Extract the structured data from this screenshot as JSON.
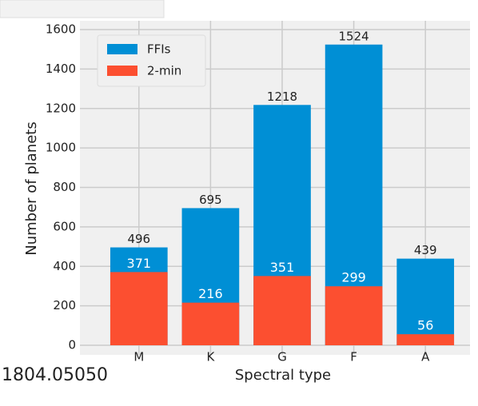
{
  "chart_data": {
    "type": "bar",
    "mode": "overlay",
    "categories": [
      "M",
      "K",
      "G",
      "F",
      "A"
    ],
    "series": [
      {
        "name": "FFIs",
        "color": "#008fd5",
        "values": [
          496,
          695,
          1218,
          1524,
          439
        ]
      },
      {
        "name": "2-min",
        "color": "#fc4f30",
        "values": [
          371,
          216,
          351,
          299,
          56
        ]
      }
    ],
    "xlabel": "Spectral type",
    "ylabel": "Number of planets",
    "ylim": [
      0,
      1600
    ],
    "yticks": [
      0,
      200,
      400,
      600,
      800,
      1000,
      1200,
      1400,
      1600
    ],
    "grid": true,
    "legend": "upper left"
  },
  "watermark": "1804.05050"
}
